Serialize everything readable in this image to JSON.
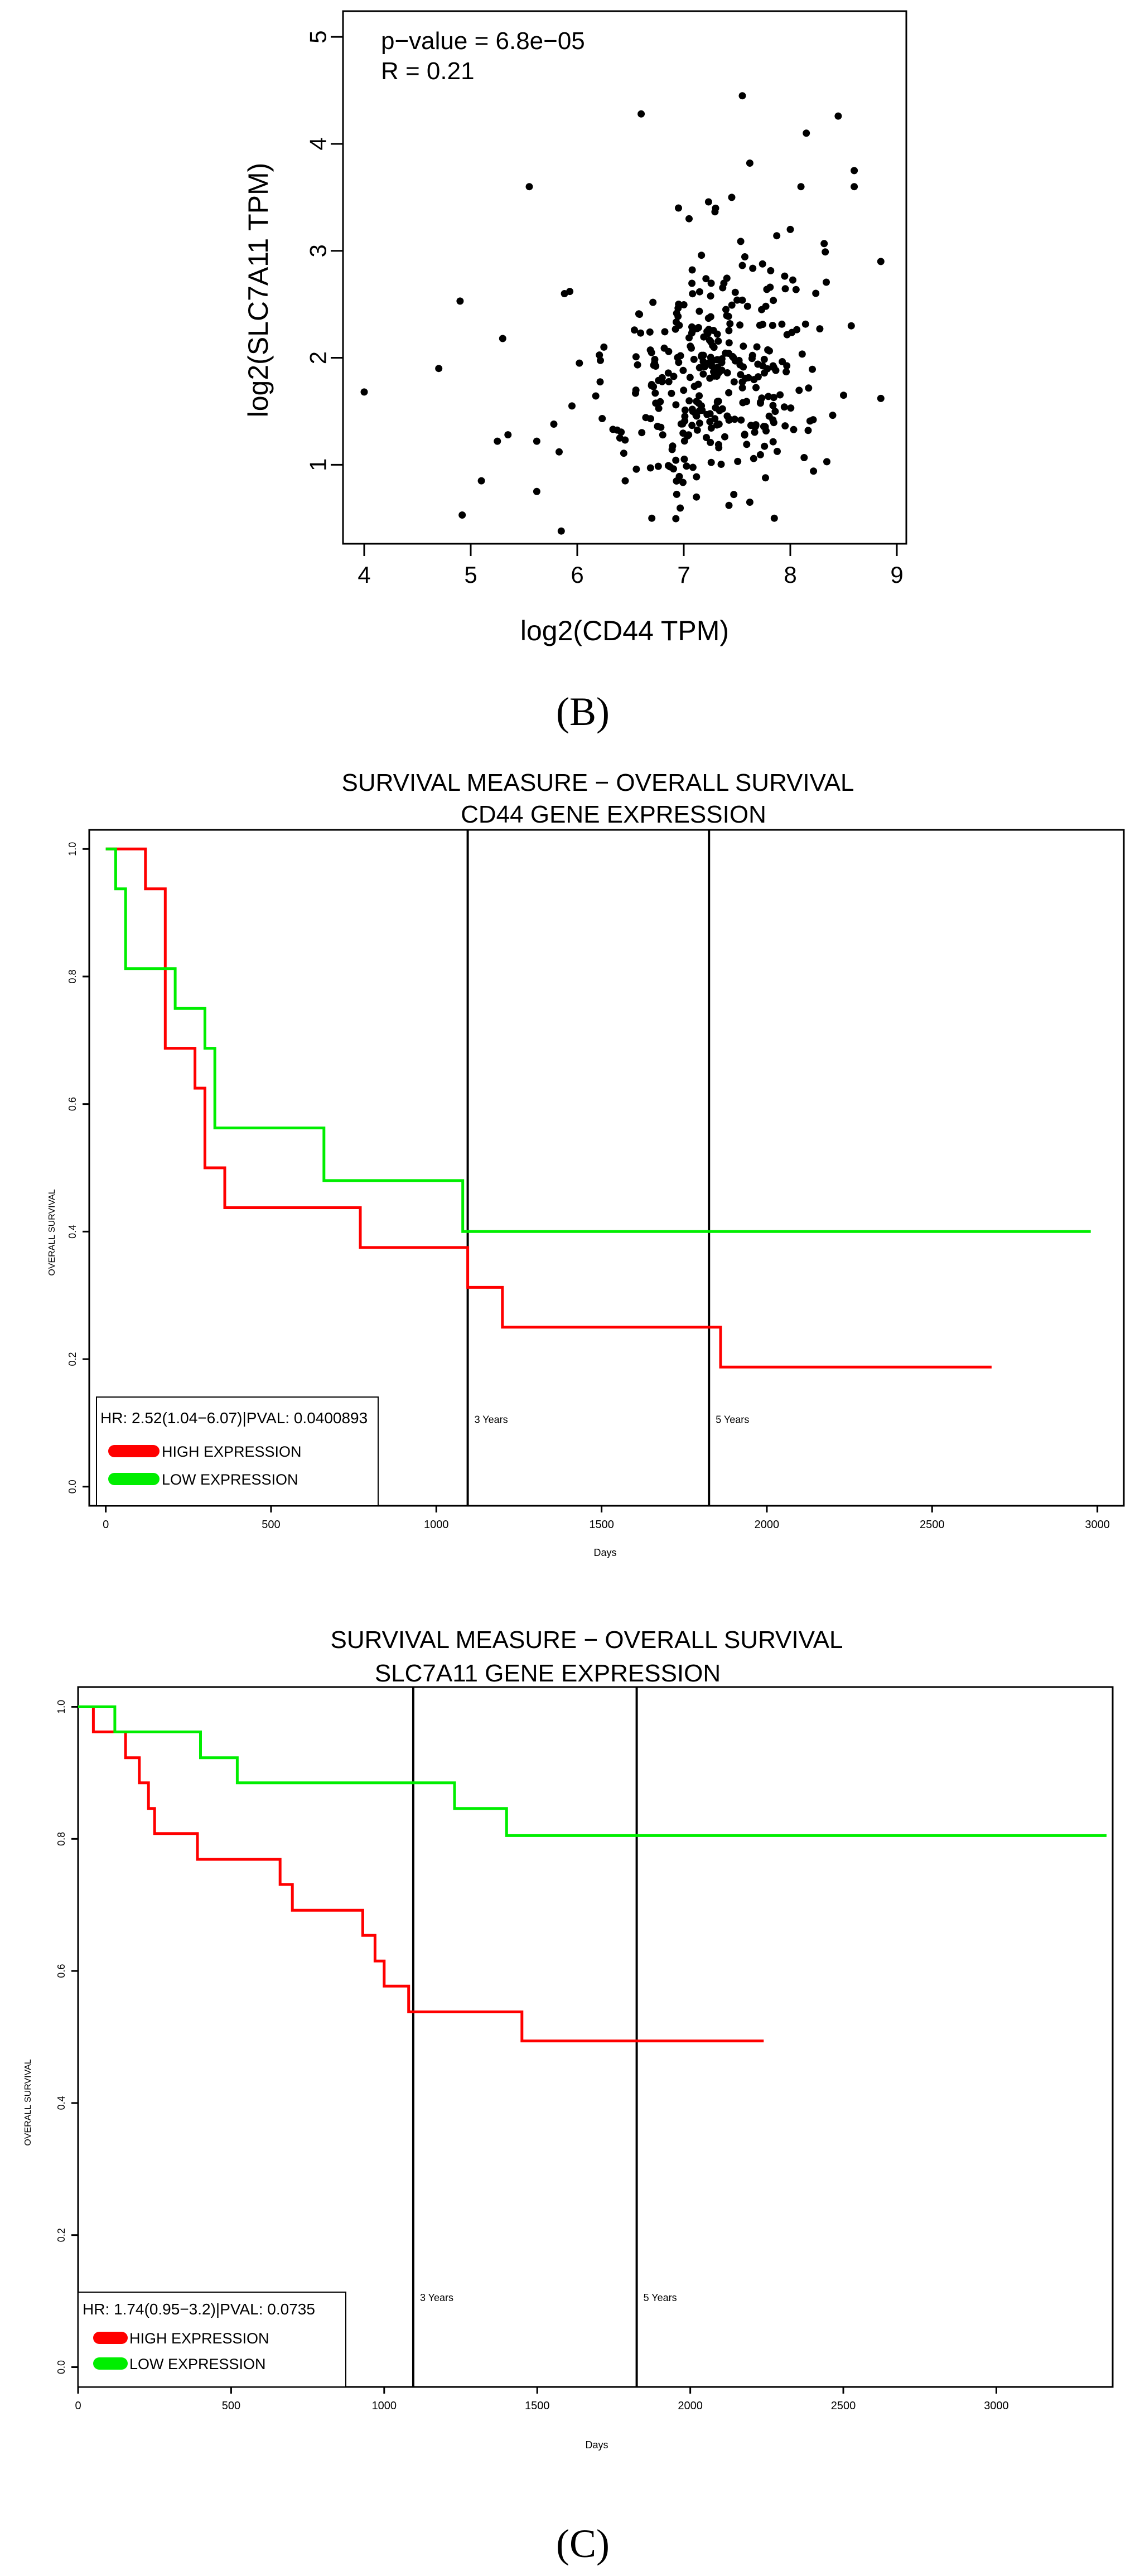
{
  "panel_labels": {
    "b": "(B)",
    "c": "(C)"
  },
  "chart_data": [
    {
      "type": "scatter",
      "xlabel": "log2(CD44 TPM)",
      "ylabel": "log2(SLC7A11 TPM)",
      "xlim": [
        4,
        9
      ],
      "ylim": [
        0.35,
        5.1
      ],
      "xticks": [
        "4",
        "5",
        "6",
        "7",
        "8",
        "9"
      ],
      "yticks": [
        "1",
        "2",
        "3",
        "4",
        "5"
      ],
      "annotations": [
        "p−value = 6.8e−05",
        "R = 0.21"
      ],
      "n_points_approx": 360,
      "outlier_points": [
        {
          "x": 4.0,
          "y": 1.68
        },
        {
          "x": 4.7,
          "y": 1.9
        },
        {
          "x": 4.9,
          "y": 2.53
        },
        {
          "x": 4.92,
          "y": 0.53
        },
        {
          "x": 5.1,
          "y": 0.85
        },
        {
          "x": 5.25,
          "y": 1.22
        },
        {
          "x": 5.3,
          "y": 2.18
        },
        {
          "x": 5.35,
          "y": 1.28
        },
        {
          "x": 5.55,
          "y": 3.6
        },
        {
          "x": 5.62,
          "y": 0.75
        },
        {
          "x": 5.62,
          "y": 1.22
        },
        {
          "x": 5.78,
          "y": 1.38
        },
        {
          "x": 5.83,
          "y": 1.12
        },
        {
          "x": 5.85,
          "y": 0.38
        },
        {
          "x": 5.88,
          "y": 2.6
        },
        {
          "x": 5.93,
          "y": 2.62
        },
        {
          "x": 5.95,
          "y": 1.55
        },
        {
          "x": 6.02,
          "y": 1.95
        },
        {
          "x": 6.6,
          "y": 4.28
        },
        {
          "x": 7.55,
          "y": 4.45
        },
        {
          "x": 8.15,
          "y": 4.1
        },
        {
          "x": 8.45,
          "y": 4.26
        },
        {
          "x": 8.6,
          "y": 3.75
        },
        {
          "x": 8.6,
          "y": 3.6
        },
        {
          "x": 8.85,
          "y": 2.9
        },
        {
          "x": 8.85,
          "y": 1.62
        },
        {
          "x": 8.5,
          "y": 1.65
        },
        {
          "x": 6.7,
          "y": 0.5
        },
        {
          "x": 7.85,
          "y": 0.5
        },
        {
          "x": 7.62,
          "y": 0.65
        },
        {
          "x": 6.95,
          "y": 3.4
        },
        {
          "x": 7.05,
          "y": 3.3
        },
        {
          "x": 7.45,
          "y": 3.5
        },
        {
          "x": 8.0,
          "y": 3.2
        },
        {
          "x": 8.1,
          "y": 3.6
        },
        {
          "x": 7.62,
          "y": 3.82
        },
        {
          "x": 6.25,
          "y": 2.1
        },
        {
          "x": 6.4,
          "y": 1.25
        },
        {
          "x": 6.45,
          "y": 0.85
        }
      ],
      "cluster": {
        "x_mean": 7.3,
        "x_sd": 0.5,
        "y_mean": 1.85,
        "y_sd": 0.6,
        "slope": 0.2
      }
    },
    {
      "type": "line",
      "subtype": "kaplan-meier",
      "title": "SURVIVAL MEASURE −  OVERALL SURVIVAL",
      "subtitle": "CD44 GENE EXPRESSION",
      "xlabel": "Days",
      "ylabel": "OVERALL SURVIVAL",
      "xlim": [
        -50,
        3080
      ],
      "ylim": [
        -0.03,
        1.03
      ],
      "xticks": [
        "0",
        "500",
        "1000",
        "1500",
        "2000",
        "2500",
        "3000"
      ],
      "yticks": [
        "0.0",
        "0.2",
        "0.4",
        "0.6",
        "0.8",
        "1.0"
      ],
      "vlines": [
        {
          "x": 1095,
          "label": "3 Years"
        },
        {
          "x": 1825,
          "label": "5 Years"
        }
      ],
      "legend": {
        "title": "HR: 2.52(1.04−6.07)|PVAL: 0.0400893",
        "location": "bottom-left",
        "items": [
          "HIGH EXPRESSION",
          "LOW EXPRESSION"
        ]
      },
      "series": [
        {
          "name": "HIGH EXPRESSION",
          "color": "#ff0000",
          "steps": [
            [
              0,
              1.0
            ],
            [
              120,
              0.9375
            ],
            [
              180,
              0.6875
            ],
            [
              270,
              0.625
            ],
            [
              300,
              0.5
            ],
            [
              360,
              0.4375
            ],
            [
              770,
              0.375
            ],
            [
              1095,
              0.3125
            ],
            [
              1200,
              0.25
            ],
            [
              1860,
              0.1875
            ],
            [
              2680,
              0.1875
            ]
          ]
        },
        {
          "name": "LOW EXPRESSION",
          "color": "#00ee00",
          "steps": [
            [
              0,
              1.0
            ],
            [
              30,
              0.9375
            ],
            [
              60,
              0.8125
            ],
            [
              210,
              0.75
            ],
            [
              300,
              0.6875
            ],
            [
              330,
              0.5625
            ],
            [
              660,
              0.48
            ],
            [
              1080,
              0.4
            ],
            [
              2980,
              0.4
            ]
          ]
        }
      ]
    },
    {
      "type": "line",
      "subtype": "kaplan-meier",
      "title": "SURVIVAL MEASURE −  OVERALL SURVIVAL",
      "subtitle": "SLC7A11  GENE EXPRESSION",
      "xlabel": "Days",
      "ylabel": "OVERALL SURVIVAL",
      "xlim": [
        0,
        3380
      ],
      "ylim": [
        -0.03,
        1.03
      ],
      "xticks": [
        "0",
        "500",
        "1000",
        "1500",
        "2000",
        "2500",
        "3000"
      ],
      "yticks": [
        "0.0",
        "0.2",
        "0.4",
        "0.6",
        "0.8",
        "1.0"
      ],
      "vlines": [
        {
          "x": 1095,
          "label": "3 Years"
        },
        {
          "x": 1825,
          "label": "5 Years"
        }
      ],
      "legend": {
        "title": "HR: 1.74(0.95−3.2)|PVAL: 0.0735",
        "location": "bottom-left",
        "items": [
          "HIGH EXPRESSION",
          "LOW EXPRESSION"
        ]
      },
      "series": [
        {
          "name": "HIGH EXPRESSION",
          "color": "#ff0000",
          "steps": [
            [
              0,
              1.0
            ],
            [
              50,
              0.962
            ],
            [
              155,
              0.923
            ],
            [
              200,
              0.885
            ],
            [
              230,
              0.846
            ],
            [
              250,
              0.808
            ],
            [
              390,
              0.769
            ],
            [
              660,
              0.731
            ],
            [
              700,
              0.692
            ],
            [
              930,
              0.654
            ],
            [
              970,
              0.615
            ],
            [
              1000,
              0.577
            ],
            [
              1080,
              0.538
            ],
            [
              1450,
              0.494
            ],
            [
              2240,
              0.494
            ]
          ]
        },
        {
          "name": "LOW EXPRESSION",
          "color": "#00ee00",
          "steps": [
            [
              0,
              1.0
            ],
            [
              120,
              0.962
            ],
            [
              400,
              0.923
            ],
            [
              520,
              0.885
            ],
            [
              1230,
              0.846
            ],
            [
              1400,
              0.805
            ],
            [
              3360,
              0.805
            ]
          ]
        }
      ]
    }
  ]
}
